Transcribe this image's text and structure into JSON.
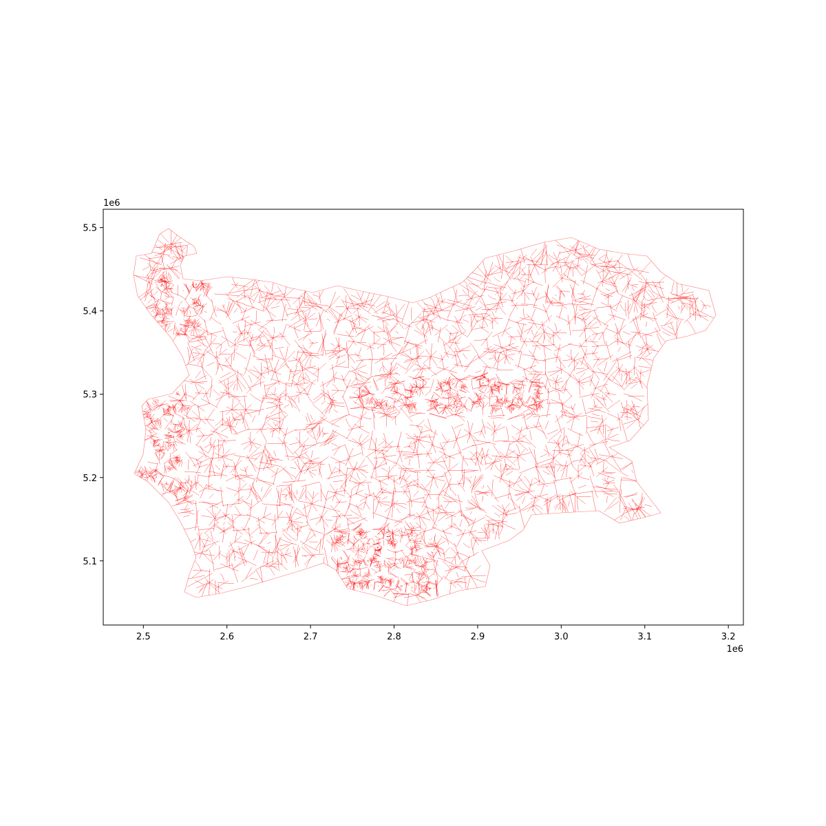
{
  "map": {
    "type": "choropleth-outline",
    "boundary_color": "#ff0000",
    "background_color": "#ffffff",
    "grid": false,
    "x_axis": {
      "range": [
        2452000,
        3218000
      ],
      "ticks": [
        2500000,
        2600000,
        2700000,
        2800000,
        2900000,
        3000000,
        3100000,
        3200000
      ],
      "tick_labels": [
        "2.5",
        "2.6",
        "2.7",
        "2.8",
        "2.9",
        "3.0",
        "3.1",
        "3.2"
      ],
      "offset_label": "1e6"
    },
    "y_axis": {
      "range": [
        5023000,
        5522000
      ],
      "ticks": [
        5100000,
        5200000,
        5300000,
        5400000,
        5500000
      ],
      "tick_labels": [
        "5.1",
        "5.2",
        "5.3",
        "5.4",
        "5.5"
      ],
      "offset_label": "1e6"
    }
  }
}
